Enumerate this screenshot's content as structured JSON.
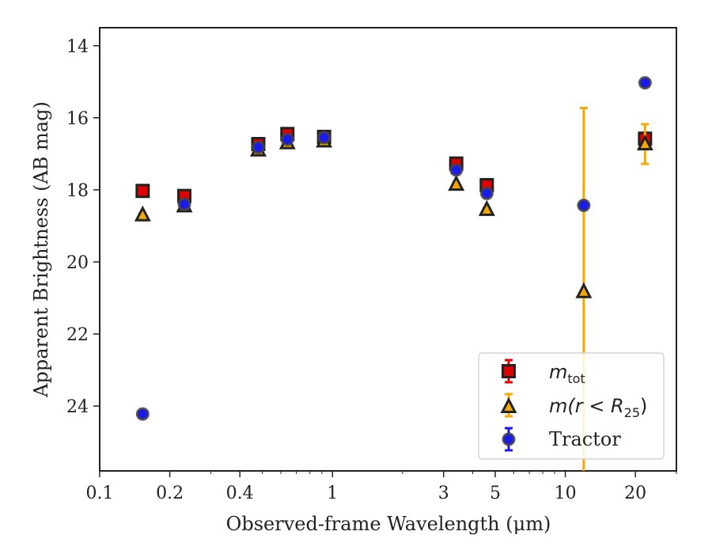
{
  "chart_data": {
    "type": "scatter",
    "title": "",
    "xlabel": "Observed-frame Wavelength (μm)",
    "ylabel": "Apparent Brightness (AB mag)",
    "xscale": "log",
    "xlim": [
      0.1,
      30
    ],
    "ylim": [
      25.8,
      13.5
    ],
    "y_inverted": true,
    "x_ticks": [
      0.1,
      0.2,
      0.4,
      1,
      3,
      5,
      10,
      20
    ],
    "x_tick_labels": [
      "0.1",
      "0.2",
      "0.4",
      "1",
      "3",
      "5",
      "10",
      "20"
    ],
    "y_ticks": [
      14,
      16,
      18,
      20,
      22,
      24
    ],
    "y_tick_labels": [
      "14",
      "16",
      "18",
      "20",
      "22",
      "24"
    ],
    "legend_position": "lower-right",
    "series": [
      {
        "name": "m_tot",
        "marker": "square",
        "color": "#e00000",
        "edge_color": "#222222",
        "x": [
          0.153,
          0.231,
          0.48,
          0.64,
          0.92,
          3.4,
          4.6,
          22.0
        ],
        "y": [
          18.03,
          18.17,
          16.73,
          16.45,
          16.53,
          17.27,
          17.87,
          16.58
        ],
        "yerr": [
          0.02,
          0.02,
          0.02,
          0.02,
          0.02,
          0.05,
          0.05,
          0.1
        ]
      },
      {
        "name": "m(r<R25)",
        "marker": "triangle",
        "color": "#f5a800",
        "edge_color": "#222222",
        "x": [
          0.153,
          0.231,
          0.48,
          0.64,
          0.92,
          3.4,
          4.6,
          12.0,
          22.0
        ],
        "y": [
          18.7,
          18.45,
          16.9,
          16.7,
          16.65,
          17.85,
          18.55,
          20.83,
          16.73
        ],
        "yerr": [
          0.02,
          0.02,
          0.02,
          0.02,
          0.02,
          0.05,
          0.05,
          5.1,
          0.55
        ]
      },
      {
        "name": "Tractor",
        "marker": "circle",
        "color": "#1a1aee",
        "edge_color": "#444444",
        "x": [
          0.153,
          0.231,
          0.48,
          0.64,
          0.92,
          3.4,
          4.6,
          12.0,
          22.0
        ],
        "y": [
          24.22,
          18.4,
          16.82,
          16.6,
          16.55,
          17.45,
          18.1,
          18.43,
          15.03
        ],
        "yerr": [
          0.02,
          0.02,
          0.02,
          0.02,
          0.02,
          0.03,
          0.03,
          0.03,
          0.05
        ]
      }
    ]
  },
  "legend": {
    "entry1_main": "m",
    "entry1_sub": "tot",
    "entry2_main": "m(r < R",
    "entry2_sub": "25",
    "entry2_close": ")",
    "entry3": "Tractor"
  }
}
